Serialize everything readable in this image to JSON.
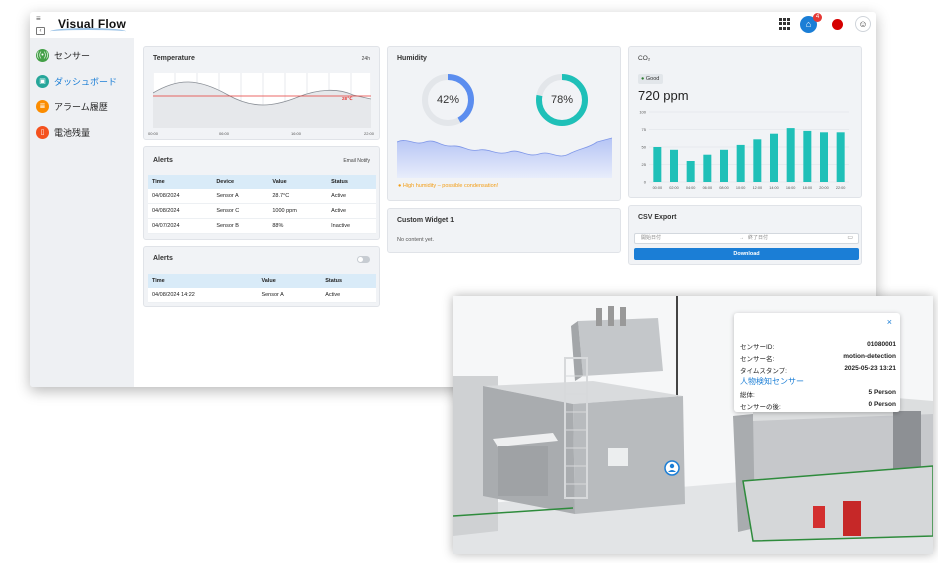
{
  "app": {
    "logo_text": "Visual Flow"
  },
  "header": {
    "notification_count": "4"
  },
  "sidebar": {
    "items": [
      {
        "label": "センサー",
        "icon": "sensor-icon",
        "color": "#43a047",
        "active": false
      },
      {
        "label": "ダッシュボード",
        "icon": "dashboard-icon",
        "color": "#26a69a",
        "active": true
      },
      {
        "label": "アラーム履歴",
        "icon": "alarm-history-icon",
        "color": "#fb8c00",
        "active": false
      },
      {
        "label": "電池残量",
        "icon": "battery-icon",
        "color": "#f4511e",
        "active": false
      }
    ]
  },
  "temperature": {
    "title": "Temperature",
    "range": "24h",
    "threshold_label": "28℃",
    "x_ticks": [
      "00:00",
      "06:00",
      "16:00",
      "22:00"
    ]
  },
  "alerts1": {
    "title": "Alerts",
    "action": "Email Notify",
    "columns": [
      "Time",
      "Device",
      "Value",
      "Status"
    ],
    "rows": [
      [
        "04/08/2024",
        "Sensor A",
        "28.7°C",
        "Active"
      ],
      [
        "04/08/2024",
        "Sensor C",
        "1000 ppm",
        "Active"
      ],
      [
        "04/07/2024",
        "Sensor B",
        "88%",
        "Inactive"
      ]
    ]
  },
  "alerts2": {
    "title": "Alerts",
    "columns": [
      "Time",
      "Value",
      "Status"
    ],
    "rows": [
      [
        "04/08/2024 14:22",
        "Sensor A",
        "Active"
      ]
    ]
  },
  "humidity": {
    "title": "Humidity",
    "gauges": [
      {
        "label": "42%",
        "value": 0.42,
        "color": "#5b8def"
      },
      {
        "label": "78%",
        "value": 0.78,
        "color": "#1fc0b8"
      }
    ],
    "warning": "High humidity – possible condensation!"
  },
  "custom_widget": {
    "title": "Custom Widget 1",
    "empty_text": "No content yet."
  },
  "co2": {
    "title": "CO₂",
    "badge": "Good",
    "reading": "720 ppm"
  },
  "csv_export": {
    "title": "CSV Export",
    "start_placeholder": "開始日付",
    "end_placeholder": "終了日付",
    "arrow": "→",
    "download_label": "Download"
  },
  "chart_data": [
    {
      "type": "bar",
      "title": "CO₂",
      "categories": [
        "00:00",
        "02:00",
        "04:00",
        "06:00",
        "08:00",
        "10:00",
        "12:00",
        "14:00",
        "16:00",
        "18:00",
        "20:00",
        "22:00"
      ],
      "values": [
        50,
        46,
        30,
        39,
        46,
        53,
        61,
        69,
        77,
        73,
        71,
        71
      ],
      "ylim": [
        0,
        100
      ],
      "y_ticks": [
        0,
        25,
        50,
        75,
        100
      ],
      "color": "#1fc0b8"
    }
  ],
  "viewer": {
    "popup": {
      "close": "×",
      "rows": [
        {
          "key": "センサーID:",
          "value": "01080001"
        },
        {
          "key": "センサー名:",
          "value": "motion-detection"
        },
        {
          "key": "タイムスタンプ:",
          "value": "2025-05-23 13:21"
        }
      ],
      "section": "人物検知センサー",
      "rows2": [
        {
          "key": "総体:",
          "value": "5 Person"
        },
        {
          "key": "センサーの後:",
          "value": "0 Person"
        }
      ]
    }
  }
}
